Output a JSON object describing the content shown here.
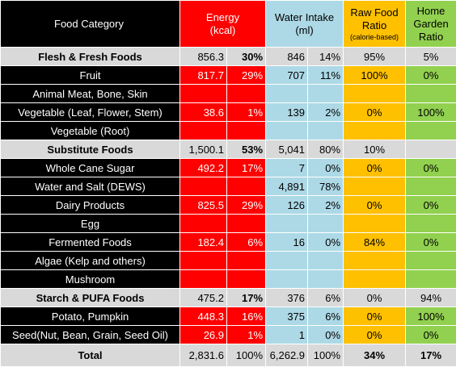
{
  "header": {
    "category": "Food Category",
    "energy": [
      "Energy",
      "(kcal)"
    ],
    "water": [
      "Water Intake",
      "(ml)"
    ],
    "raw": [
      "Raw Food",
      "Ratio",
      "(calorie-based)"
    ],
    "garden": [
      "Home",
      "Garden",
      "Ratio"
    ]
  },
  "rows": [
    {
      "cat": "Flesh & Fresh Foods",
      "e": "856.3",
      "ep": "30%",
      "w": "846",
      "wp": "14%",
      "r": "95%",
      "g": "5%"
    },
    {
      "cat": "Fruit",
      "e": "817.7",
      "ep": "29%",
      "w": "707",
      "wp": "11%",
      "r": "100%",
      "g": "0%"
    },
    {
      "cat": "Animal Meat, Bone, Skin",
      "e": "",
      "ep": "",
      "w": "",
      "wp": "",
      "r": "",
      "g": ""
    },
    {
      "cat": "Vegetable (Leaf, Flower, Stem)",
      "e": "38.6",
      "ep": "1%",
      "w": "139",
      "wp": "2%",
      "r": "0%",
      "g": "100%"
    },
    {
      "cat": "Vegetable (Root)",
      "e": "",
      "ep": "",
      "w": "",
      "wp": "",
      "r": "",
      "g": ""
    },
    {
      "cat": "Substitute Foods",
      "e": "1,500.1",
      "ep": "53%",
      "w": "5,041",
      "wp": "80%",
      "r": "10%",
      "g": ""
    },
    {
      "cat": "Whole Cane Sugar",
      "e": "492.2",
      "ep": "17%",
      "w": "7",
      "wp": "0%",
      "r": "0%",
      "g": "0%"
    },
    {
      "cat": "Water and Salt (DEWS)",
      "e": "",
      "ep": "",
      "w": "4,891",
      "wp": "78%",
      "r": "",
      "g": ""
    },
    {
      "cat": "Dairy Products",
      "e": "825.5",
      "ep": "29%",
      "w": "126",
      "wp": "2%",
      "r": "0%",
      "g": "0%"
    },
    {
      "cat": "Egg",
      "e": "",
      "ep": "",
      "w": "",
      "wp": "",
      "r": "",
      "g": ""
    },
    {
      "cat": "Fermented Foods",
      "e": "182.4",
      "ep": "6%",
      "w": "16",
      "wp": "0%",
      "r": "84%",
      "g": "0%"
    },
    {
      "cat": "Algae (Kelp and others)",
      "e": "",
      "ep": "",
      "w": "",
      "wp": "",
      "r": "",
      "g": ""
    },
    {
      "cat": "Mushroom",
      "e": "",
      "ep": "",
      "w": "",
      "wp": "",
      "r": "",
      "g": ""
    },
    {
      "cat": "Starch & PUFA Foods",
      "e": "475.2",
      "ep": "17%",
      "w": "376",
      "wp": "6%",
      "r": "0%",
      "g": "94%"
    },
    {
      "cat": "Potato, Pumpkin",
      "e": "448.3",
      "ep": "16%",
      "w": "375",
      "wp": "6%",
      "r": "0%",
      "g": "100%"
    },
    {
      "cat": "Seed(Nut, Bean, Grain, Seed Oil)",
      "e": "26.9",
      "ep": "1%",
      "w": "1",
      "wp": "0%",
      "r": "0%",
      "g": "0%"
    },
    {
      "cat": "Total",
      "e": "2,831.6",
      "ep": "100%",
      "w": "6,262.9",
      "wp": "100%",
      "r": "34%",
      "g": "17%"
    }
  ],
  "colors": {
    "black": "#000000",
    "red": "#ff0000",
    "light_blue": "#add8e6",
    "orange": "#ffc000",
    "green": "#92d050",
    "grey": "#d9d9d9"
  }
}
